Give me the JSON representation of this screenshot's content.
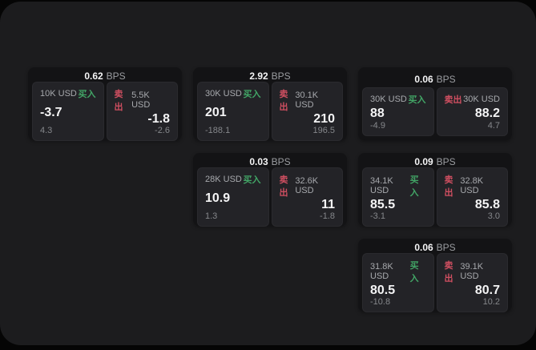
{
  "labels": {
    "bps": "BPS",
    "buy": "买入",
    "sell": "卖出"
  },
  "colors": {
    "backdrop": "#050505",
    "panel": "#1c1c1e",
    "card": "#131315",
    "tile": "#232327",
    "text_primary": "#f4f4f5",
    "text_secondary": "#a7a9ad",
    "text_muted": "#85878b",
    "buy_green": "#42a566",
    "sell_red": "#d04f61"
  },
  "cards": [
    {
      "bps": "0.62",
      "buy": {
        "size": "10K USD",
        "price": "-3.7",
        "delta": "4.3"
      },
      "sell": {
        "size": "5.5K USD",
        "price": "-1.8",
        "delta": "-2.6"
      }
    },
    {
      "bps": "2.92",
      "buy": {
        "size": "30K USD",
        "price": "201",
        "delta": "-188.1"
      },
      "sell": {
        "size": "30.1K USD",
        "price": "210",
        "delta": "196.5"
      }
    },
    {
      "bps": "0.06",
      "buy": {
        "size": "30K USD",
        "price": "88",
        "delta": "-4.9"
      },
      "sell": {
        "size": "30K USD",
        "price": "88.2",
        "delta": "4.7"
      }
    },
    {
      "bps": "0.03",
      "buy": {
        "size": "28K USD",
        "price": "10.9",
        "delta": "1.3"
      },
      "sell": {
        "size": "32.6K USD",
        "price": "11",
        "delta": "-1.8"
      }
    },
    {
      "bps": "0.09",
      "buy": {
        "size": "34.1K USD",
        "price": "85.5",
        "delta": "-3.1"
      },
      "sell": {
        "size": "32.8K USD",
        "price": "85.8",
        "delta": "3.0"
      }
    },
    {
      "bps": "0.06",
      "buy": {
        "size": "31.8K USD",
        "price": "80.5",
        "delta": "-10.8"
      },
      "sell": {
        "size": "39.1K USD",
        "price": "80.7",
        "delta": "10.2"
      }
    }
  ]
}
